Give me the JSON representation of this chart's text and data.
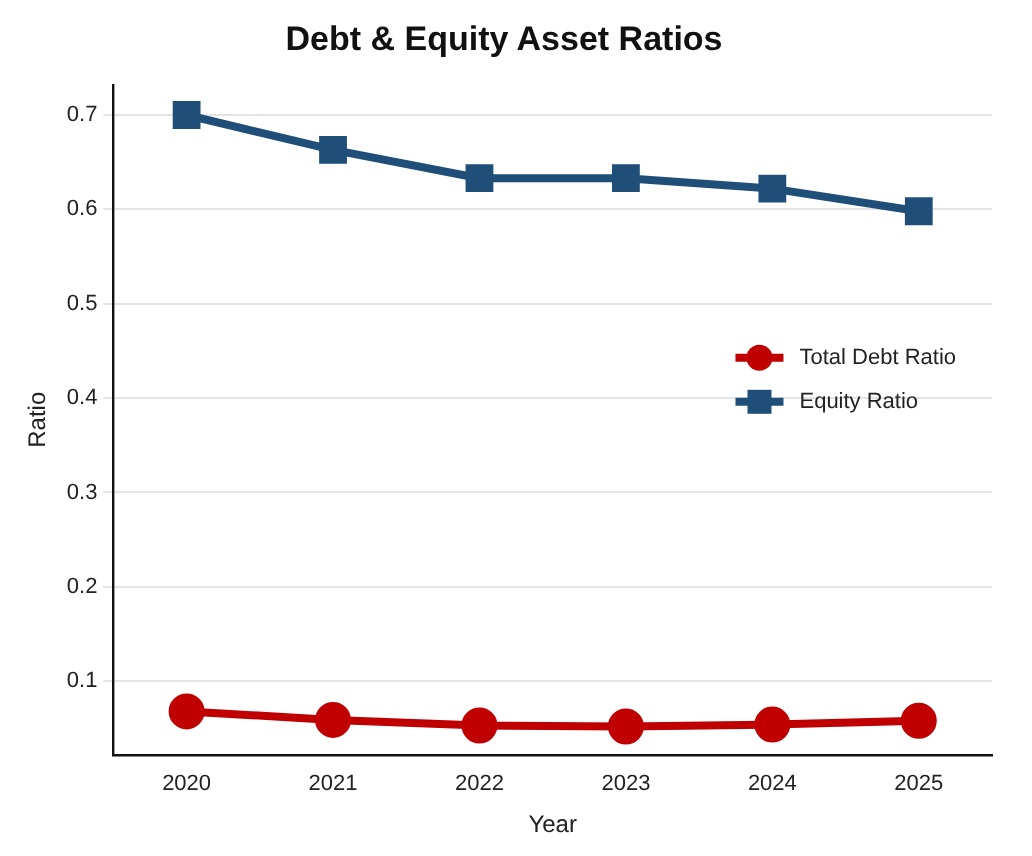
{
  "chart_data": {
    "type": "line",
    "title": "Debt & Equity Asset Ratios",
    "xlabel": "Year",
    "ylabel": "Ratio",
    "categories": [
      "2020",
      "2021",
      "2022",
      "2023",
      "2024",
      "2025"
    ],
    "series": [
      {
        "name": "Total Debt Ratio",
        "color": "#c00000",
        "marker": "circle",
        "values": [
          0.068,
          0.059,
          0.053,
          0.052,
          0.054,
          0.058
        ]
      },
      {
        "name": "Equity Ratio",
        "color": "#1f4e79",
        "marker": "square",
        "values": [
          0.7,
          0.663,
          0.633,
          0.633,
          0.622,
          0.598
        ]
      }
    ],
    "ylim": [
      0.022,
      0.732
    ],
    "yticks": [
      0.1,
      0.2,
      0.3,
      0.4,
      0.5,
      0.6,
      0.7
    ],
    "grid": "y",
    "legend": "right"
  }
}
